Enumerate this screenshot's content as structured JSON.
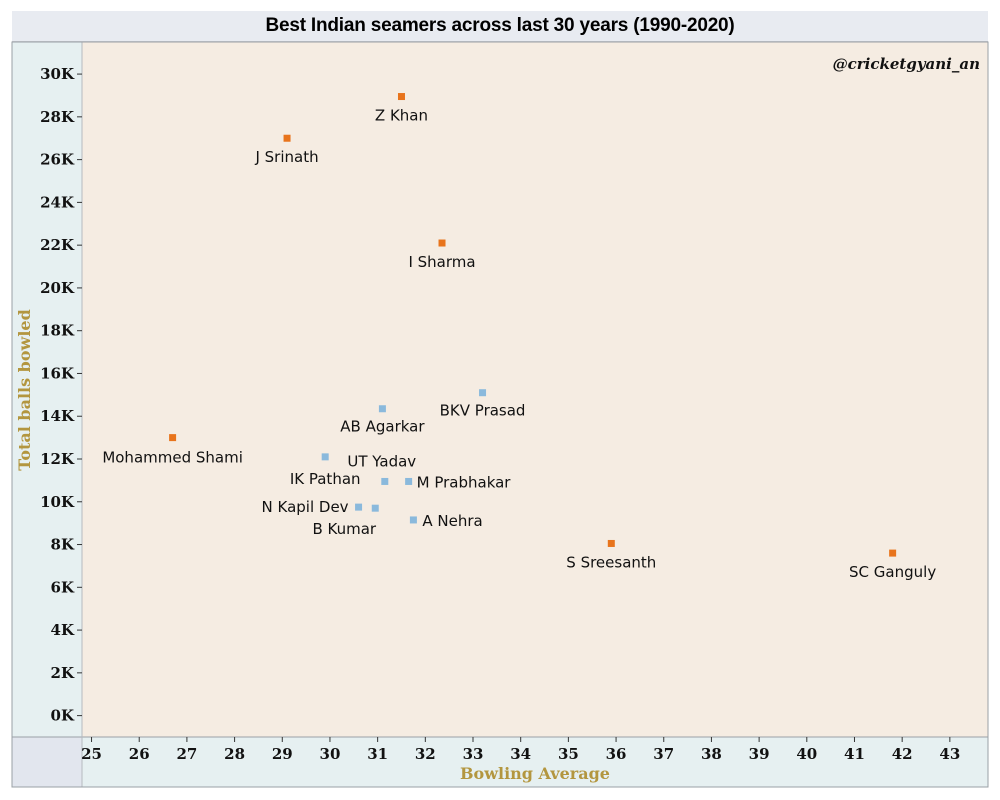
{
  "chart_data": {
    "type": "scatter",
    "title": "Best Indian seamers across last 30 years (1990-2020)",
    "watermark": "@cricketgyani_an",
    "xlabel": "Bowling Average",
    "ylabel": "Total balls bowled",
    "xlim": [
      24.8,
      43.8
    ],
    "ylim": [
      -1000,
      31500
    ],
    "x_ticks": [
      25,
      26,
      27,
      28,
      29,
      30,
      31,
      32,
      33,
      34,
      35,
      36,
      37,
      38,
      39,
      40,
      41,
      42,
      43
    ],
    "y_ticks": [
      {
        "value": 0,
        "label": "0K"
      },
      {
        "value": 2000,
        "label": "2K"
      },
      {
        "value": 4000,
        "label": "4K"
      },
      {
        "value": 6000,
        "label": "6K"
      },
      {
        "value": 8000,
        "label": "8K"
      },
      {
        "value": 10000,
        "label": "10K"
      },
      {
        "value": 12000,
        "label": "12K"
      },
      {
        "value": 14000,
        "label": "14K"
      },
      {
        "value": 16000,
        "label": "16K"
      },
      {
        "value": 18000,
        "label": "18K"
      },
      {
        "value": 20000,
        "label": "20K"
      },
      {
        "value": 22000,
        "label": "22K"
      },
      {
        "value": 24000,
        "label": "24K"
      },
      {
        "value": 26000,
        "label": "26K"
      },
      {
        "value": 28000,
        "label": "28K"
      },
      {
        "value": 30000,
        "label": "30K"
      }
    ],
    "grid": false,
    "colors": {
      "orange": "#e8741c",
      "blue": "#8ab9dc",
      "plot_bg": "#f5ece2",
      "axis_bg": "#e6f0f1",
      "corner_bg": "#e2e6ee"
    },
    "points": [
      {
        "label": "Z Khan",
        "x": 31.5,
        "y": 28950,
        "group": "orange"
      },
      {
        "label": "J Srinath",
        "x": 29.1,
        "y": 27000,
        "group": "orange"
      },
      {
        "label": "I Sharma",
        "x": 32.35,
        "y": 22100,
        "group": "orange"
      },
      {
        "label": "Mohammed Shami",
        "x": 26.7,
        "y": 13000,
        "group": "orange"
      },
      {
        "label": "S Sreesanth",
        "x": 35.9,
        "y": 8050,
        "group": "orange"
      },
      {
        "label": "SC Ganguly",
        "x": 41.8,
        "y": 7600,
        "group": "orange"
      },
      {
        "label": "BKV Prasad",
        "x": 33.2,
        "y": 15100,
        "group": "blue"
      },
      {
        "label": "AB Agarkar",
        "x": 31.1,
        "y": 14350,
        "group": "blue"
      },
      {
        "label": "IK Pathan",
        "x": 29.9,
        "y": 12100,
        "group": "blue"
      },
      {
        "label": "UT Yadav",
        "x": 31.15,
        "y": 10950,
        "group": "blue"
      },
      {
        "label": "M Prabhakar",
        "x": 31.65,
        "y": 10950,
        "group": "blue"
      },
      {
        "label": "N Kapil Dev",
        "x": 30.6,
        "y": 9750,
        "group": "blue"
      },
      {
        "label": "B Kumar",
        "x": 30.95,
        "y": 9700,
        "group": "blue"
      },
      {
        "label": "A Nehra",
        "x": 31.75,
        "y": 9150,
        "group": "blue"
      }
    ]
  }
}
